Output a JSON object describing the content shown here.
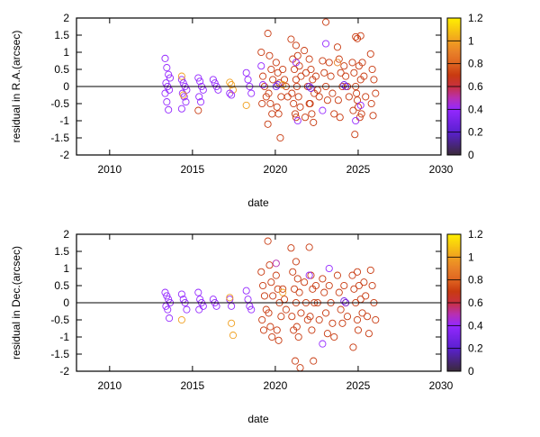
{
  "colormap": {
    "stops": [
      [
        0,
        "#3a2a3a"
      ],
      [
        0.2,
        "#5a20d0"
      ],
      [
        0.4,
        "#9428ff"
      ],
      [
        0.5,
        "#b830b0"
      ],
      [
        0.6,
        "#c83040"
      ],
      [
        0.7,
        "#c83a10"
      ],
      [
        0.8,
        "#e06420"
      ],
      [
        0.9,
        "#e88028"
      ],
      [
        1.0,
        "#f0a020"
      ],
      [
        1.2,
        "#fff000"
      ]
    ]
  },
  "chart_data": [
    {
      "type": "scatter",
      "xlabel": "date",
      "ylabel": "residual in R.A.(arcsec)",
      "xlim": [
        2008,
        2030
      ],
      "ylim": [
        -2,
        2
      ],
      "xticks": [
        "2010",
        "2015",
        "2020",
        "2025",
        "2030"
      ],
      "yticks": [
        "-2",
        "-1.5",
        "-1",
        "-0.5",
        "0",
        "0.5",
        "1",
        "1.5",
        "2"
      ],
      "colorbar": {
        "range": [
          0,
          1.2
        ],
        "ticks": [
          "0",
          "0.2",
          "0.4",
          "0.6",
          "0.8",
          "1",
          "1.2"
        ]
      },
      "zero_line": true,
      "groups": [
        {
          "t": 2013.5,
          "c": 0.4,
          "y": [
            0.82,
            0.55,
            0.35,
            0.25,
            0.1,
            0,
            -0.1,
            -0.2,
            -0.45,
            -0.68
          ]
        },
        {
          "t": 2014.5,
          "c": 0.4,
          "y": [
            0.2,
            0.1,
            0,
            -0.1,
            -0.2,
            -0.3,
            -0.45,
            -0.65
          ]
        },
        {
          "t": 2014.5,
          "c": 1.0,
          "y": [
            0.3,
            -0.25
          ]
        },
        {
          "t": 2015.5,
          "c": 0.4,
          "y": [
            0.25,
            0.15,
            0,
            -0.1,
            -0.3,
            -0.45
          ]
        },
        {
          "t": 2015.5,
          "c": 0.7,
          "y": [
            -0.7
          ]
        },
        {
          "t": 2016.4,
          "c": 0.4,
          "y": [
            0.2,
            0.1,
            0,
            -0.1
          ]
        },
        {
          "t": 2017.4,
          "c": 1.0,
          "y": [
            0.12,
            0.05,
            -0.1
          ]
        },
        {
          "t": 2017.4,
          "c": 0.4,
          "y": [
            -0.2,
            -0.25
          ]
        },
        {
          "t": 2018.4,
          "c": 0.4,
          "y": [
            0.4,
            0.2,
            0,
            -0.2
          ]
        },
        {
          "t": 2018.4,
          "c": 1.0,
          "y": [
            -0.55
          ]
        },
        {
          "t": 2019.3,
          "c": 0.7,
          "y": [
            1.0,
            0.3,
            0,
            -0.3,
            -0.5
          ]
        },
        {
          "t": 2019.3,
          "c": 0.4,
          "y": [
            0.6,
            0.05
          ]
        },
        {
          "t": 2019.7,
          "c": 0.7,
          "y": [
            1.55,
            0.9,
            0.5,
            0.2,
            -0.2,
            -0.5,
            -0.8,
            -1.1
          ]
        },
        {
          "t": 2020.2,
          "c": 0.7,
          "y": [
            0.7,
            0.4,
            0.1,
            -0.3,
            -0.6,
            -0.8,
            -1.5
          ]
        },
        {
          "t": 2020.2,
          "c": 0.3,
          "y": [
            0,
            0.05
          ]
        },
        {
          "t": 2020.6,
          "c": 0.7,
          "y": [
            0.5,
            0.2,
            0,
            -0.3
          ]
        },
        {
          "t": 2020.6,
          "c": 1.0,
          "y": [
            0.05
          ]
        },
        {
          "t": 2021.1,
          "c": 0.7,
          "y": [
            1.38,
            0.8,
            0.5,
            0.2,
            -0.2,
            -0.5,
            -0.8
          ]
        },
        {
          "t": 2021.4,
          "c": 0.7,
          "y": [
            1.2,
            0.9,
            0.6,
            0.3,
            0,
            -0.3,
            -0.6,
            -0.9
          ]
        },
        {
          "t": 2021.4,
          "c": 0.4,
          "y": [
            0.7,
            -1.0
          ]
        },
        {
          "t": 2021.9,
          "c": 0.7,
          "y": [
            1.05,
            0.4,
            0,
            -0.5,
            -0.9
          ]
        },
        {
          "t": 2022.2,
          "c": 0.7,
          "y": [
            0.8,
            0.5,
            0.2,
            -0.2,
            -0.5,
            -0.8,
            -1.05
          ]
        },
        {
          "t": 2022.2,
          "c": 0.3,
          "y": [
            0,
            -0.05
          ]
        },
        {
          "t": 2022.6,
          "c": 0.7,
          "y": [
            0.3,
            -0.1,
            -0.3
          ]
        },
        {
          "t": 2023.0,
          "c": 0.7,
          "y": [
            0.75,
            0.4,
            0,
            -0.4
          ]
        },
        {
          "t": 2023.0,
          "c": 0.4,
          "y": [
            -0.7
          ]
        },
        {
          "t": 2023.2,
          "c": 0.7,
          "y": [
            1.88
          ]
        },
        {
          "t": 2023.2,
          "c": 0.4,
          "y": [
            1.25
          ]
        },
        {
          "t": 2023.4,
          "c": 0.7,
          "y": [
            0.7,
            0.3,
            -0.2,
            -0.8
          ]
        },
        {
          "t": 2023.9,
          "c": 0.7,
          "y": [
            1.15,
            0.8,
            0.4,
            0,
            -0.4,
            -0.9
          ]
        },
        {
          "t": 2023.9,
          "c": 0.9,
          "y": [
            0.7
          ]
        },
        {
          "t": 2024.3,
          "c": 0.7,
          "y": [
            0.6,
            0.3,
            0,
            -0.3
          ]
        },
        {
          "t": 2024.3,
          "c": 0.3,
          "y": [
            0.05,
            0
          ]
        },
        {
          "t": 2024.8,
          "c": 0.7,
          "y": [
            0.7,
            0.4,
            0,
            -0.4,
            -0.7,
            -1.4
          ]
        },
        {
          "t": 2025.0,
          "c": 0.7,
          "y": [
            1.45,
            1.4,
            0.6,
            0.2,
            -0.2,
            -0.6,
            -0.9
          ]
        },
        {
          "t": 2025.0,
          "c": 0.4,
          "y": [
            -1.0
          ]
        },
        {
          "t": 2025.3,
          "c": 0.7,
          "y": [
            1.48,
            0.7,
            0.3,
            -0.3,
            -0.8
          ]
        },
        {
          "t": 2025.3,
          "c": 0.4,
          "y": [
            -0.55
          ]
        },
        {
          "t": 2025.9,
          "c": 0.7,
          "y": [
            0.95,
            0.5,
            0.2,
            -0.2,
            -0.5,
            -0.85
          ]
        }
      ]
    },
    {
      "type": "scatter",
      "xlabel": "date",
      "ylabel": "residual in Dec.(arcsec)",
      "xlim": [
        2008,
        2030
      ],
      "ylim": [
        -2,
        2
      ],
      "xticks": [
        "2010",
        "2015",
        "2020",
        "2025",
        "2030"
      ],
      "yticks": [
        "-2",
        "-1.5",
        "-1",
        "-0.5",
        "0",
        "0.5",
        "1",
        "1.5",
        "2"
      ],
      "colorbar": {
        "range": [
          0,
          1.2
        ],
        "ticks": [
          "0",
          "0.2",
          "0.4",
          "0.6",
          "0.8",
          "1",
          "1.2"
        ]
      },
      "zero_line": true,
      "groups": [
        {
          "t": 2013.5,
          "c": 0.4,
          "y": [
            0.3,
            0.2,
            0.1,
            0,
            -0.1,
            -0.2,
            -0.45
          ]
        },
        {
          "t": 2014.5,
          "c": 0.4,
          "y": [
            0.25,
            0.1,
            0,
            -0.2
          ]
        },
        {
          "t": 2014.5,
          "c": 1.0,
          "y": [
            -0.5
          ]
        },
        {
          "t": 2015.5,
          "c": 0.4,
          "y": [
            0.3,
            0.1,
            0,
            -0.1,
            -0.2
          ]
        },
        {
          "t": 2016.4,
          "c": 0.4,
          "y": [
            0.1,
            0,
            -0.1
          ]
        },
        {
          "t": 2017.4,
          "c": 0.4,
          "y": [
            0.1,
            -0.1
          ]
        },
        {
          "t": 2017.4,
          "c": 1.0,
          "y": [
            0.15,
            -0.6,
            -0.95
          ]
        },
        {
          "t": 2018.4,
          "c": 0.4,
          "y": [
            0.35,
            0.1,
            -0.1,
            -0.2
          ]
        },
        {
          "t": 2019.3,
          "c": 0.7,
          "y": [
            0.9,
            0.5,
            0.2,
            -0.2,
            -0.5,
            -0.8
          ]
        },
        {
          "t": 2019.7,
          "c": 0.7,
          "y": [
            1.8,
            1.1,
            0.6,
            0.2,
            -0.3,
            -0.7,
            -1.0
          ]
        },
        {
          "t": 2020.2,
          "c": 0.7,
          "y": [
            0.8,
            0.4,
            0,
            -0.4,
            -0.8,
            -1.1
          ]
        },
        {
          "t": 2020.2,
          "c": 0.5,
          "y": [
            1.15
          ]
        },
        {
          "t": 2020.6,
          "c": 0.7,
          "y": [
            0.4,
            0.1,
            -0.2
          ]
        },
        {
          "t": 2020.6,
          "c": 1.0,
          "y": [
            0.3
          ]
        },
        {
          "t": 2021.1,
          "c": 0.7,
          "y": [
            1.6,
            0.9,
            0.4,
            0,
            -0.4,
            -0.8,
            -1.7
          ]
        },
        {
          "t": 2021.4,
          "c": 0.7,
          "y": [
            1.2,
            0.7,
            0.3,
            -0.3,
            -0.7,
            -1.0,
            -1.9
          ]
        },
        {
          "t": 2021.9,
          "c": 0.7,
          "y": [
            0.6,
            0,
            -0.5
          ]
        },
        {
          "t": 2022.2,
          "c": 0.7,
          "y": [
            1.62,
            0.8,
            0.4,
            0,
            -0.4,
            -0.8,
            -1.7
          ]
        },
        {
          "t": 2022.2,
          "c": 0.4,
          "y": [
            0.8
          ]
        },
        {
          "t": 2022.6,
          "c": 0.7,
          "y": [
            0.5,
            0,
            -0.5
          ]
        },
        {
          "t": 2023.0,
          "c": 0.7,
          "y": [
            0.7,
            0.3,
            -0.3,
            -0.9
          ]
        },
        {
          "t": 2023.0,
          "c": 0.4,
          "y": [
            -1.2
          ]
        },
        {
          "t": 2023.4,
          "c": 0.4,
          "y": [
            1.0
          ]
        },
        {
          "t": 2023.4,
          "c": 0.7,
          "y": [
            0.5,
            0,
            -0.6,
            -1.0
          ]
        },
        {
          "t": 2023.9,
          "c": 0.7,
          "y": [
            0.8,
            0.3,
            -0.2,
            -0.6
          ]
        },
        {
          "t": 2024.3,
          "c": 0.7,
          "y": [
            0.5,
            0,
            -0.4
          ]
        },
        {
          "t": 2024.3,
          "c": 0.3,
          "y": [
            0.05,
            0
          ]
        },
        {
          "t": 2024.8,
          "c": 0.7,
          "y": [
            0.8,
            0.4,
            0,
            -0.5,
            -1.3
          ]
        },
        {
          "t": 2025.1,
          "c": 0.7,
          "y": [
            0.9,
            0.5,
            0.1,
            -0.3,
            -0.8
          ]
        },
        {
          "t": 2025.5,
          "c": 0.7,
          "y": [
            0.6,
            0.2,
            -0.4,
            -0.9
          ]
        },
        {
          "t": 2025.9,
          "c": 0.7,
          "y": [
            0.95,
            0.5,
            0,
            -0.5
          ]
        }
      ]
    }
  ]
}
